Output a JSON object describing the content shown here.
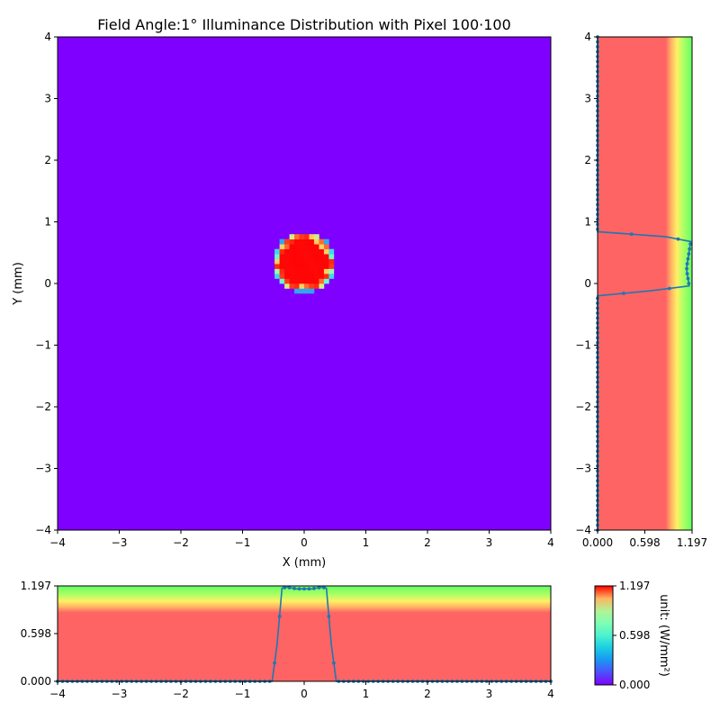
{
  "chart_data": [
    {
      "type": "heatmap",
      "title": "Field Angle:1°  Illuminance Distribution with Pixel 100·100",
      "xlabel": "X (mm)",
      "ylabel": "Y (mm)",
      "xlim": [
        -4,
        4
      ],
      "ylim": [
        -4,
        4
      ],
      "xticks": [
        "−4",
        "−3",
        "−2",
        "−1",
        "0",
        "1",
        "2",
        "3",
        "4"
      ],
      "yticks": [
        "−4",
        "−3",
        "−2",
        "−1",
        "0",
        "1",
        "2",
        "3",
        "4"
      ],
      "grid": false,
      "pixels": [
        100,
        100
      ],
      "background_value": 0.0,
      "spot": {
        "center_x": 0.0,
        "center_y": 0.34,
        "radius": 0.45,
        "peak_value": 1.197
      }
    },
    {
      "type": "line",
      "name": "y-profile",
      "orientation": "vertical",
      "xlim": [
        0,
        1.197
      ],
      "ylim": [
        -4,
        4
      ],
      "xticks": [
        "0.000",
        "0.598",
        "1.197"
      ],
      "yticks": [
        "−4",
        "−3",
        "−2",
        "−1",
        "0",
        "1",
        "2",
        "3",
        "4"
      ],
      "points": [
        {
          "y": -4.0,
          "v": 0.0
        },
        {
          "y": -0.2,
          "v": 0.0
        },
        {
          "y": -0.12,
          "v": 0.66
        },
        {
          "y": -0.04,
          "v": 1.16
        },
        {
          "y": 0.04,
          "v": 1.15
        },
        {
          "y": 0.12,
          "v": 1.14
        },
        {
          "y": 0.2,
          "v": 1.13
        },
        {
          "y": 0.28,
          "v": 1.13
        },
        {
          "y": 0.36,
          "v": 1.14
        },
        {
          "y": 0.44,
          "v": 1.15
        },
        {
          "y": 0.52,
          "v": 1.16
        },
        {
          "y": 0.6,
          "v": 1.17
        },
        {
          "y": 0.68,
          "v": 1.18
        },
        {
          "y": 0.76,
          "v": 0.86
        },
        {
          "y": 0.84,
          "v": 0.0
        },
        {
          "y": 4.0,
          "v": 0.0
        }
      ]
    },
    {
      "type": "line",
      "name": "x-profile",
      "orientation": "horizontal",
      "xlim": [
        -4,
        4
      ],
      "ylim": [
        0,
        1.197
      ],
      "xticks": [
        "−4",
        "−3",
        "−2",
        "−1",
        "0",
        "1",
        "2",
        "3",
        "4"
      ],
      "yticks": [
        "0.000",
        "0.598",
        "1.197"
      ],
      "points": [
        {
          "x": -4.0,
          "v": 0.0
        },
        {
          "x": -0.52,
          "v": 0.0
        },
        {
          "x": -0.44,
          "v": 0.46
        },
        {
          "x": -0.36,
          "v": 1.17
        },
        {
          "x": -0.28,
          "v": 1.18
        },
        {
          "x": -0.2,
          "v": 1.17
        },
        {
          "x": -0.12,
          "v": 1.16
        },
        {
          "x": -0.04,
          "v": 1.16
        },
        {
          "x": 0.04,
          "v": 1.16
        },
        {
          "x": 0.12,
          "v": 1.16
        },
        {
          "x": 0.2,
          "v": 1.17
        },
        {
          "x": 0.28,
          "v": 1.18
        },
        {
          "x": 0.36,
          "v": 1.17
        },
        {
          "x": 0.44,
          "v": 0.46
        },
        {
          "x": 0.52,
          "v": 0.0
        },
        {
          "x": 4.0,
          "v": 0.0
        }
      ]
    },
    {
      "type": "colorbar",
      "label": "unit: (W/mm²)",
      "range": [
        0.0,
        1.197
      ],
      "ticks": [
        "0.000",
        "0.598",
        "1.197"
      ],
      "colormap": "rainbow"
    }
  ],
  "colors": {
    "background_low": "#8000ff",
    "spot_peak": "#ff0000",
    "profile_fill": "#ff6464",
    "profile_line": "#1f77b4"
  }
}
